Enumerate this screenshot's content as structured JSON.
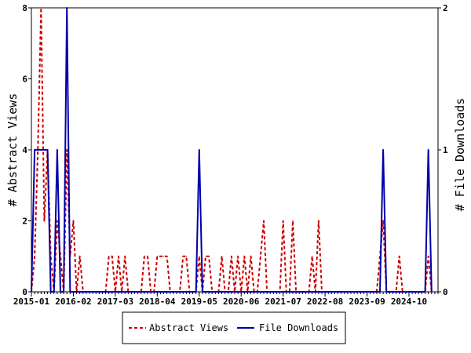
{
  "chart_data": {
    "type": "line",
    "y_left_label": "# Abstract Views",
    "y_right_label": "# File Downloads",
    "y_left_ticks": [
      "0",
      "2",
      "4",
      "6",
      "8"
    ],
    "y_right_ticks": [
      "0",
      "1",
      "2"
    ],
    "y_left_lim": [
      0,
      8
    ],
    "y_right_lim": [
      0,
      2
    ],
    "x_lim": [
      "2015-01",
      "2025-07"
    ],
    "x_tick_labels": [
      "2015-01",
      "2016-02",
      "2017-03",
      "2018-04",
      "2019-05",
      "2020-06",
      "2021-07",
      "2022-08",
      "2023-09",
      "2024-10"
    ],
    "legend_position": "bottom-center",
    "series": [
      {
        "name": "Abstract Views",
        "axis": "left",
        "color": "#cc0000",
        "style": "dashed",
        "points": [
          [
            "2015-01",
            0
          ],
          [
            "2015-02",
            1
          ],
          [
            "2015-03",
            4
          ],
          [
            "2015-04",
            8
          ],
          [
            "2015-05",
            2
          ],
          [
            "2015-06",
            4
          ],
          [
            "2015-07",
            1
          ],
          [
            "2015-08",
            0
          ],
          [
            "2015-09",
            2
          ],
          [
            "2015-10",
            1
          ],
          [
            "2015-11",
            0
          ],
          [
            "2015-12",
            4
          ],
          [
            "2016-01",
            1
          ],
          [
            "2016-02",
            2
          ],
          [
            "2016-03",
            0
          ],
          [
            "2016-04",
            1
          ],
          [
            "2016-05",
            0
          ],
          [
            "2016-06",
            0
          ],
          [
            "2016-07",
            0
          ],
          [
            "2016-08",
            0
          ],
          [
            "2016-09",
            0
          ],
          [
            "2016-10",
            0
          ],
          [
            "2016-11",
            0
          ],
          [
            "2016-12",
            0
          ],
          [
            "2017-01",
            1
          ],
          [
            "2017-02",
            1
          ],
          [
            "2017-03",
            0
          ],
          [
            "2017-04",
            1
          ],
          [
            "2017-05",
            0
          ],
          [
            "2017-06",
            1
          ],
          [
            "2017-07",
            0
          ],
          [
            "2017-08",
            0
          ],
          [
            "2017-09",
            0
          ],
          [
            "2017-10",
            0
          ],
          [
            "2017-11",
            0
          ],
          [
            "2017-12",
            1
          ],
          [
            "2018-01",
            1
          ],
          [
            "2018-02",
            0
          ],
          [
            "2018-03",
            0
          ],
          [
            "2018-04",
            1
          ],
          [
            "2018-05",
            1
          ],
          [
            "2018-06",
            1
          ],
          [
            "2018-07",
            1
          ],
          [
            "2018-08",
            0
          ],
          [
            "2018-09",
            0
          ],
          [
            "2018-10",
            0
          ],
          [
            "2018-11",
            0
          ],
          [
            "2018-12",
            1
          ],
          [
            "2019-01",
            1
          ],
          [
            "2019-02",
            0
          ],
          [
            "2019-03",
            0
          ],
          [
            "2019-04",
            0
          ],
          [
            "2019-05",
            1
          ],
          [
            "2019-06",
            0
          ],
          [
            "2019-07",
            1
          ],
          [
            "2019-08",
            1
          ],
          [
            "2019-09",
            0
          ],
          [
            "2019-10",
            0
          ],
          [
            "2019-11",
            0
          ],
          [
            "2019-12",
            1
          ],
          [
            "2020-01",
            0
          ],
          [
            "2020-02",
            0
          ],
          [
            "2020-03",
            1
          ],
          [
            "2020-04",
            0
          ],
          [
            "2020-05",
            1
          ],
          [
            "2020-06",
            0
          ],
          [
            "2020-07",
            1
          ],
          [
            "2020-08",
            0
          ],
          [
            "2020-09",
            1
          ],
          [
            "2020-10",
            0
          ],
          [
            "2020-11",
            0
          ],
          [
            "2020-12",
            1
          ],
          [
            "2021-01",
            2
          ],
          [
            "2021-02",
            0
          ],
          [
            "2021-03",
            0
          ],
          [
            "2021-04",
            0
          ],
          [
            "2021-05",
            0
          ],
          [
            "2021-06",
            0
          ],
          [
            "2021-07",
            2
          ],
          [
            "2021-08",
            0
          ],
          [
            "2021-09",
            0
          ],
          [
            "2021-10",
            2
          ],
          [
            "2021-11",
            0
          ],
          [
            "2021-12",
            0
          ],
          [
            "2022-01",
            0
          ],
          [
            "2022-02",
            0
          ],
          [
            "2022-03",
            0
          ],
          [
            "2022-04",
            1
          ],
          [
            "2022-05",
            0
          ],
          [
            "2022-06",
            2
          ],
          [
            "2022-07",
            0
          ],
          [
            "2022-08",
            0
          ],
          [
            "2022-09",
            0
          ],
          [
            "2022-10",
            0
          ],
          [
            "2022-11",
            0
          ],
          [
            "2022-12",
            0
          ],
          [
            "2023-01",
            0
          ],
          [
            "2023-02",
            0
          ],
          [
            "2023-03",
            0
          ],
          [
            "2023-04",
            0
          ],
          [
            "2023-05",
            0
          ],
          [
            "2023-06",
            0
          ],
          [
            "2023-07",
            0
          ],
          [
            "2023-08",
            0
          ],
          [
            "2023-09",
            0
          ],
          [
            "2023-10",
            0
          ],
          [
            "2023-11",
            0
          ],
          [
            "2023-12",
            0
          ],
          [
            "2024-01",
            1
          ],
          [
            "2024-02",
            2
          ],
          [
            "2024-03",
            0
          ],
          [
            "2024-04",
            0
          ],
          [
            "2024-05",
            0
          ],
          [
            "2024-06",
            0
          ],
          [
            "2024-07",
            1
          ],
          [
            "2024-08",
            0
          ],
          [
            "2024-09",
            0
          ],
          [
            "2024-10",
            0
          ],
          [
            "2024-11",
            0
          ],
          [
            "2024-12",
            0
          ],
          [
            "2025-01",
            0
          ],
          [
            "2025-02",
            0
          ],
          [
            "2025-03",
            0
          ],
          [
            "2025-04",
            1
          ],
          [
            "2025-05",
            0
          ]
        ]
      },
      {
        "name": "File Downloads",
        "axis": "right",
        "color": "#0000aa",
        "style": "solid",
        "points": [
          [
            "2015-01",
            0
          ],
          [
            "2015-02",
            1
          ],
          [
            "2015-03",
            1
          ],
          [
            "2015-04",
            1
          ],
          [
            "2015-05",
            1
          ],
          [
            "2015-06",
            1
          ],
          [
            "2015-07",
            0
          ],
          [
            "2015-08",
            0
          ],
          [
            "2015-09",
            1
          ],
          [
            "2015-10",
            0
          ],
          [
            "2015-11",
            0
          ],
          [
            "2015-12",
            2
          ],
          [
            "2016-01",
            0
          ],
          [
            "2016-02",
            0
          ],
          [
            "2016-03",
            0
          ],
          [
            "2016-04",
            0
          ],
          [
            "2016-05",
            0
          ],
          [
            "2019-03",
            0
          ],
          [
            "2019-04",
            0
          ],
          [
            "2019-05",
            1
          ],
          [
            "2019-06",
            0
          ],
          [
            "2019-07",
            0
          ],
          [
            "2024-01",
            0
          ],
          [
            "2024-02",
            1
          ],
          [
            "2024-03",
            0
          ],
          [
            "2024-04",
            0
          ],
          [
            "2025-02",
            0
          ],
          [
            "2025-03",
            0
          ],
          [
            "2025-04",
            1
          ],
          [
            "2025-05",
            0
          ]
        ]
      }
    ]
  }
}
